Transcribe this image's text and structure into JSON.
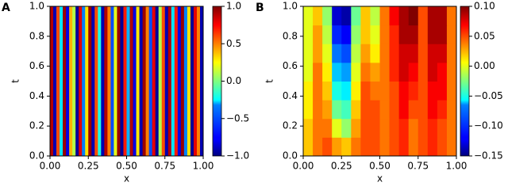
{
  "chart_data": [
    {
      "type": "heatmap",
      "panel_label": "A",
      "xlabel": "x",
      "ylabel": "t",
      "colormap": "jet",
      "xlim": [
        0,
        1
      ],
      "ylim": [
        0,
        1
      ],
      "clim": [
        -1,
        1
      ],
      "xticks": [
        {
          "value": 0,
          "label": "0.00"
        },
        0.25,
        {
          "value": 0.5,
          "label": "0.50"
        },
        0.75,
        {
          "value": 1,
          "label": "1.00"
        }
      ],
      "yticks": [
        {
          "value": 0,
          "label": "0.0"
        },
        0.2,
        0.4,
        0.6,
        0.8,
        {
          "value": 1,
          "label": "1.0"
        }
      ],
      "cticks": [
        {
          "value": -1,
          "label": "−1.0"
        },
        {
          "value": -0.5,
          "label": "−0.5"
        },
        {
          "value": 0,
          "label": "0.0"
        },
        0.5,
        {
          "value": 1,
          "label": "1.0"
        }
      ],
      "values": [
        [
          0.9,
          -0.9,
          0.6,
          -0.3,
          0.95,
          -0.8,
          0.4,
          0.1,
          -0.95,
          0.8,
          -0.5,
          0.3,
          0.95,
          -0.9,
          0.6,
          -0.2,
          -0.9,
          0.9,
          0.5,
          -0.6,
          0.2,
          0.95,
          -0.95,
          0.7,
          -0.4,
          0.9,
          -0.8,
          0.3,
          -0.9,
          0.95,
          0.5,
          -0.6,
          0.8,
          -0.95,
          0.1,
          0.6,
          -0.9,
          0.9,
          -0.3,
          0.7,
          -0.8,
          0.95,
          -0.5,
          0.3,
          -0.95,
          0.8,
          0.5,
          -0.9
        ]
      ]
    },
    {
      "type": "heatmap",
      "panel_label": "B",
      "xlabel": "x",
      "ylabel": "t",
      "colormap": "jet",
      "xlim": [
        0,
        1
      ],
      "ylim": [
        0,
        1
      ],
      "clim": [
        -0.15,
        0.1
      ],
      "xticks": [
        {
          "value": 0,
          "label": "0.00"
        },
        0.25,
        {
          "value": 0.5,
          "label": "0.50"
        },
        0.75,
        {
          "value": 1,
          "label": "1.00"
        }
      ],
      "yticks": [
        {
          "value": 0,
          "label": "0.0"
        },
        0.2,
        0.4,
        0.6,
        0.8,
        {
          "value": 1,
          "label": "1.0"
        }
      ],
      "cticks": [
        {
          "value": -0.15,
          "label": "−0.15"
        },
        {
          "value": -0.1,
          "label": "−0.10"
        },
        {
          "value": -0.05,
          "label": "−0.05"
        },
        {
          "value": 0,
          "label": "0.00"
        },
        0.05,
        {
          "value": 0.1,
          "label": "0.10"
        }
      ],
      "values": [
        [
          0.02,
          0.04,
          0.05,
          0.03,
          0.02,
          0.04,
          0.05,
          0.05,
          0.04,
          0.05,
          0.06,
          0.04,
          0.05,
          0.06,
          0.05,
          0.04
        ],
        [
          0.02,
          0.04,
          0.04,
          0.0,
          -0.02,
          0.03,
          0.05,
          0.05,
          0.04,
          0.05,
          0.06,
          0.04,
          0.05,
          0.06,
          0.05,
          0.04
        ],
        [
          0.01,
          0.04,
          0.03,
          -0.03,
          -0.04,
          0.02,
          0.05,
          0.05,
          0.04,
          0.05,
          0.07,
          0.05,
          0.05,
          0.07,
          0.06,
          0.04
        ],
        [
          0.01,
          0.04,
          0.02,
          -0.05,
          -0.06,
          0.01,
          0.05,
          0.04,
          0.04,
          0.05,
          0.07,
          0.06,
          0.05,
          0.07,
          0.07,
          0.04
        ],
        [
          0.0,
          0.04,
          0.01,
          -0.07,
          -0.08,
          0.0,
          0.04,
          0.03,
          0.04,
          0.06,
          0.08,
          0.07,
          0.05,
          0.08,
          0.07,
          0.04
        ],
        [
          0.0,
          0.03,
          0.0,
          -0.09,
          -0.1,
          -0.01,
          0.03,
          0.01,
          0.04,
          0.06,
          0.08,
          0.08,
          0.05,
          0.08,
          0.08,
          0.04
        ],
        [
          0.0,
          0.03,
          -0.01,
          -0.11,
          -0.12,
          -0.02,
          0.02,
          0.0,
          0.04,
          0.06,
          0.09,
          0.09,
          0.05,
          0.09,
          0.09,
          0.04
        ],
        [
          0.0,
          0.02,
          -0.02,
          -0.13,
          -0.14,
          -0.03,
          0.02,
          -0.01,
          0.04,
          0.07,
          0.09,
          0.1,
          0.05,
          0.09,
          0.09,
          0.04
        ]
      ]
    }
  ]
}
